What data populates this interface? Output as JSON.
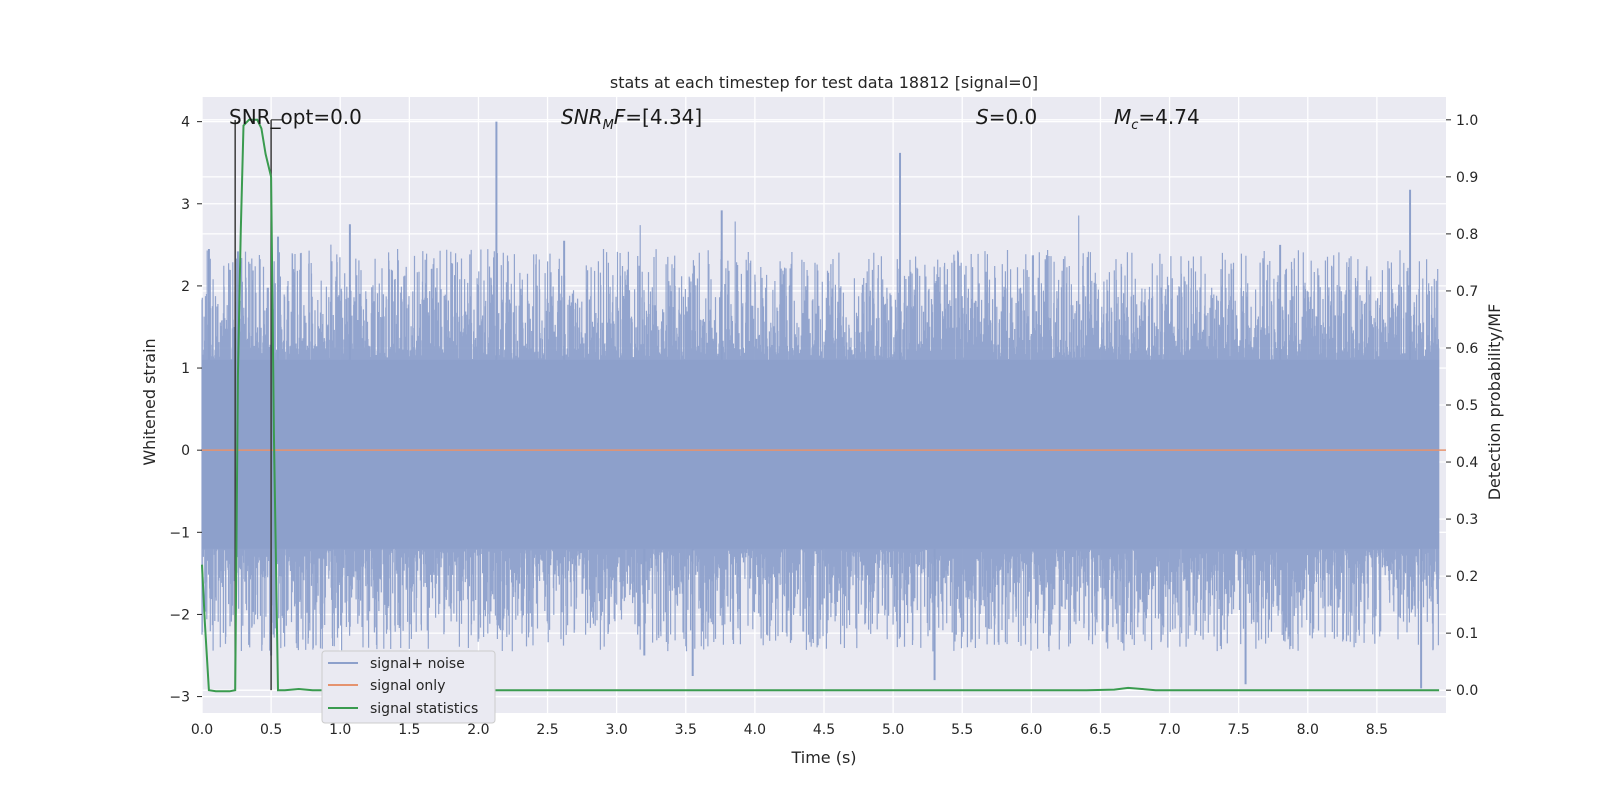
{
  "chart_data": {
    "type": "line",
    "title": "stats at each timestep for test data 18812 [signal=0]",
    "xlabel": "Time (s)",
    "ylabel_left": "Whitened strain",
    "ylabel_right": "Detection probability/MF",
    "xlim": [
      0.0,
      9.0
    ],
    "ylim_left": [
      -3.2,
      4.3
    ],
    "ylim_right": [
      -0.04,
      1.04
    ],
    "xticks": [
      "0.0",
      "0.5",
      "1.0",
      "1.5",
      "2.0",
      "2.5",
      "3.0",
      "3.5",
      "4.0",
      "4.5",
      "5.0",
      "5.5",
      "6.0",
      "6.5",
      "7.0",
      "7.5",
      "8.0",
      "8.5"
    ],
    "xtick_values": [
      0.0,
      0.5,
      1.0,
      1.5,
      2.0,
      2.5,
      3.0,
      3.5,
      4.0,
      4.5,
      5.0,
      5.5,
      6.0,
      6.5,
      7.0,
      7.5,
      8.0,
      8.5
    ],
    "yticks_left": [
      "4",
      "3",
      "2",
      "1",
      "0",
      "−1",
      "−2",
      "−3"
    ],
    "ytick_values_left": [
      4,
      3,
      2,
      1,
      0,
      -1,
      -2,
      -3
    ],
    "yticks_right": [
      "1.0",
      "0.9",
      "0.8",
      "0.7",
      "0.6",
      "0.5",
      "0.4",
      "0.3",
      "0.2",
      "0.1",
      "0.0"
    ],
    "ytick_values_right": [
      1.0,
      0.9,
      0.8,
      0.7,
      0.6,
      0.5,
      0.4,
      0.3,
      0.2,
      0.1,
      0.0
    ],
    "annotations": {
      "snr_opt": "SNR_opt=0.0",
      "snr_mf_main": "SNR",
      "snr_mf_sub": "M",
      "snr_mf_rest": "F=[4.34]",
      "s_main": "S",
      "s_rest": "=0.0",
      "mc_main": "M",
      "mc_sub": "c",
      "mc_rest": "=4.74"
    },
    "noise_envelope": {
      "sample_rate_hz": 2048,
      "core_upper": 1.1,
      "core_lower": -1.2,
      "notable_peaks": [
        {
          "x": 0.05,
          "y": 2.45
        },
        {
          "x": 0.26,
          "y": 2.42
        },
        {
          "x": 0.55,
          "y": 2.6
        },
        {
          "x": 1.07,
          "y": 2.75
        },
        {
          "x": 2.13,
          "y": 4.0
        },
        {
          "x": 3.76,
          "y": 2.92
        },
        {
          "x": 5.05,
          "y": 3.62
        },
        {
          "x": 8.74,
          "y": 3.17
        },
        {
          "x": 2.62,
          "y": 2.55
        },
        {
          "x": 7.8,
          "y": 2.5
        }
      ],
      "notable_troughs": [
        {
          "x": 3.55,
          "y": -2.75
        },
        {
          "x": 5.3,
          "y": -2.8
        },
        {
          "x": 7.55,
          "y": -2.85
        },
        {
          "x": 8.82,
          "y": -2.9
        },
        {
          "x": 0.5,
          "y": -2.5
        },
        {
          "x": 3.2,
          "y": -2.5
        }
      ]
    },
    "series": [
      {
        "name": "signal+ noise",
        "axis": "left",
        "color": "#8da0cb",
        "style": "dense noise trace"
      },
      {
        "name": "signal only",
        "axis": "left",
        "color": "#e5936f",
        "x": [
          0.0,
          9.0
        ],
        "y": [
          0.0,
          0.0
        ]
      },
      {
        "name": "signal statistics",
        "axis": "right",
        "color": "#3a9b4f",
        "x": [
          0.0,
          0.02,
          0.05,
          0.1,
          0.15,
          0.2,
          0.24,
          0.26,
          0.28,
          0.3,
          0.32,
          0.34,
          0.36,
          0.38,
          0.4,
          0.43,
          0.46,
          0.5,
          0.52,
          0.55,
          0.6,
          0.7,
          0.8,
          1.0,
          2.0,
          3.0,
          4.0,
          5.0,
          6.0,
          6.4,
          6.6,
          6.7,
          6.8,
          6.9,
          7.0,
          8.0,
          8.95
        ],
        "y": [
          0.22,
          0.12,
          0.0,
          -0.002,
          -0.002,
          -0.002,
          0.0,
          0.55,
          0.8,
          0.99,
          0.995,
          1.0,
          1.0,
          1.0,
          1.0,
          0.985,
          0.94,
          0.9,
          0.45,
          0.0,
          0.0,
          0.002,
          0.0,
          0.0,
          0.0,
          0.0,
          0.0,
          0.0,
          0.0,
          0.0,
          0.001,
          0.004,
          0.002,
          0.0,
          0.0,
          0.0,
          0.0
        ]
      }
    ],
    "vlines": [
      {
        "x": 0.24,
        "ymin_right": 0.0,
        "ymax_right": 1.0,
        "color": "#3c3c3c"
      },
      {
        "x": 0.5,
        "ymin_right": 0.0,
        "ymax_right": 1.0,
        "color": "#3c3c3c"
      }
    ],
    "legend": {
      "location": "lower-left",
      "entries": [
        {
          "label": "signal+ noise",
          "color": "#8da0cb"
        },
        {
          "label": "signal only",
          "color": "#e5936f"
        },
        {
          "label": "signal statistics",
          "color": "#3a9b4f"
        }
      ]
    },
    "grid": true,
    "colors": {
      "plot_background": "#eaeaf2",
      "grid": "#ffffff",
      "text": "#262626"
    }
  }
}
